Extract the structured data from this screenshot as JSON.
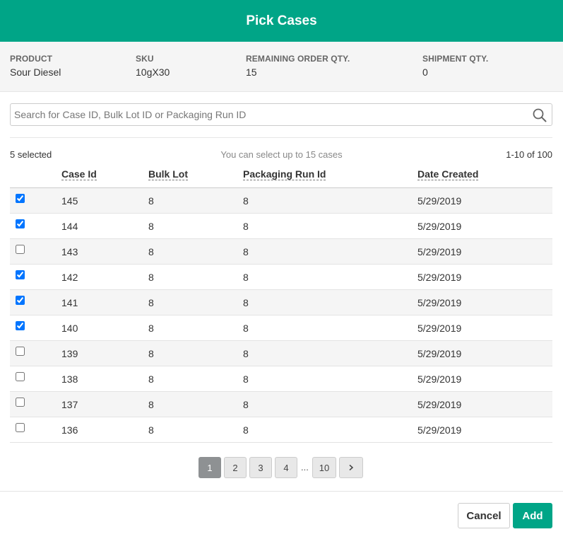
{
  "modal": {
    "title": "Pick Cases"
  },
  "info": [
    {
      "label": "PRODUCT",
      "value": "Sour Diesel"
    },
    {
      "label": "SKU",
      "value": "10gX30"
    },
    {
      "label": "REMAINING ORDER QTY.",
      "value": "15"
    },
    {
      "label": "SHIPMENT QTY.",
      "value": "0"
    }
  ],
  "search": {
    "placeholder": "Search for Case ID, Bulk Lot ID or Packaging Run ID",
    "value": "",
    "icon": "search-icon"
  },
  "table_meta": {
    "selected": "5 selected",
    "limit_text": "You can select up to 15 cases",
    "range": "1-10 of 100"
  },
  "table": {
    "columns": [
      "Case Id",
      "Bulk Lot",
      "Packaging Run Id",
      "Date Created"
    ],
    "rows": [
      {
        "checked": true,
        "case_id": "145",
        "bulk_lot": "8",
        "packaging_run_id": "8",
        "date_created": "5/29/2019"
      },
      {
        "checked": true,
        "case_id": "144",
        "bulk_lot": "8",
        "packaging_run_id": "8",
        "date_created": "5/29/2019"
      },
      {
        "checked": false,
        "case_id": "143",
        "bulk_lot": "8",
        "packaging_run_id": "8",
        "date_created": "5/29/2019"
      },
      {
        "checked": true,
        "case_id": "142",
        "bulk_lot": "8",
        "packaging_run_id": "8",
        "date_created": "5/29/2019"
      },
      {
        "checked": true,
        "case_id": "141",
        "bulk_lot": "8",
        "packaging_run_id": "8",
        "date_created": "5/29/2019"
      },
      {
        "checked": true,
        "case_id": "140",
        "bulk_lot": "8",
        "packaging_run_id": "8",
        "date_created": "5/29/2019"
      },
      {
        "checked": false,
        "case_id": "139",
        "bulk_lot": "8",
        "packaging_run_id": "8",
        "date_created": "5/29/2019"
      },
      {
        "checked": false,
        "case_id": "138",
        "bulk_lot": "8",
        "packaging_run_id": "8",
        "date_created": "5/29/2019"
      },
      {
        "checked": false,
        "case_id": "137",
        "bulk_lot": "8",
        "packaging_run_id": "8",
        "date_created": "5/29/2019"
      },
      {
        "checked": false,
        "case_id": "136",
        "bulk_lot": "8",
        "packaging_run_id": "8",
        "date_created": "5/29/2019"
      }
    ]
  },
  "pagination": {
    "pages": [
      "1",
      "2",
      "3",
      "4"
    ],
    "ellipsis": "...",
    "last": "10",
    "next": "›",
    "active": "1"
  },
  "footer": {
    "cancel_label": "Cancel",
    "add_label": "Add"
  },
  "colors": {
    "accent": "#00a587",
    "active_page": "#8e9193"
  }
}
